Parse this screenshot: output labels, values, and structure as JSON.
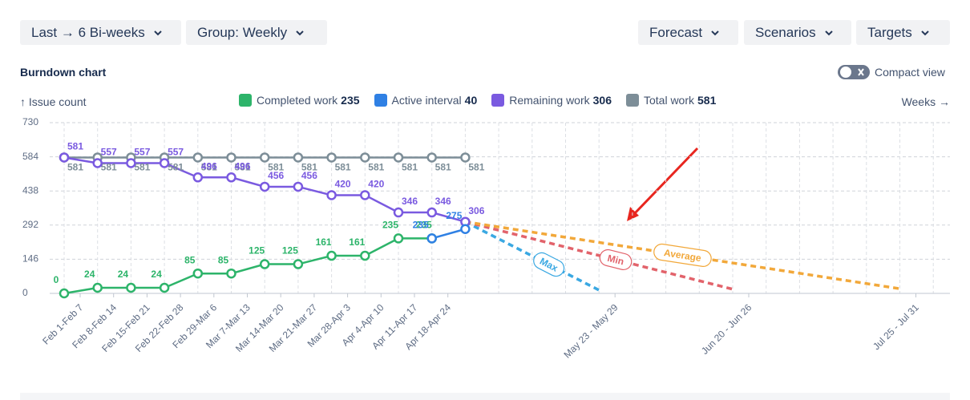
{
  "toolbar": {
    "left": [
      "Last → 6 Bi-weeks",
      "Group: Weekly"
    ],
    "right": [
      "Forecast",
      "Scenarios",
      "Targets"
    ]
  },
  "panel": {
    "title": "Burndown chart",
    "toggle": "Compact view"
  },
  "chart_data": {
    "type": "line",
    "y_label": "↑ Issue count",
    "x_label": "Weeks →",
    "categories": [
      "Feb 1-Feb 7",
      "Feb 8-Feb 14",
      "Feb 15-Feb 21",
      "Feb 22-Feb 28",
      "Feb 29-Mar 6",
      "Mar 7-Mar 13",
      "Mar 14-Mar 20",
      "Mar 21-Mar 27",
      "Mar 28-Apr 3",
      "Apr 4-Apr 10",
      "Apr 11-Apr 17",
      "Apr 18-Apr 24",
      null,
      null,
      null,
      null,
      "May 23 - May 29",
      null,
      null,
      null,
      "Jun 20 - Jun 26",
      null,
      null,
      null,
      null,
      "Jul 25 - Jul 31",
      null
    ],
    "ylim": [
      0,
      730
    ],
    "yticks": [
      0,
      146,
      292,
      438,
      584,
      730
    ],
    "grid": true,
    "data_labels": true,
    "series": [
      {
        "name": "Completed work",
        "total": 235,
        "color": "#2db46a",
        "values": [
          0,
          24,
          24,
          24,
          85,
          85,
          125,
          125,
          161,
          161,
          235,
          235,
          null,
          null,
          null,
          null,
          null,
          null,
          null,
          null,
          null,
          null,
          null,
          null,
          null,
          null,
          null
        ]
      },
      {
        "name": "Active interval",
        "total": 40,
        "color": "#2f80e4",
        "values": [
          null,
          null,
          null,
          null,
          null,
          null,
          null,
          null,
          null,
          null,
          null,
          235,
          275,
          null,
          null,
          null,
          null,
          null,
          null,
          null,
          null,
          null,
          null,
          null,
          null,
          null,
          null
        ]
      },
      {
        "name": "Remaining work",
        "total": 306,
        "color": "#7a5ae0",
        "values": [
          581,
          557,
          557,
          557,
          496,
          496,
          456,
          456,
          420,
          420,
          346,
          346,
          306,
          null,
          null,
          null,
          null,
          null,
          null,
          null,
          null,
          null,
          null,
          null,
          null,
          null,
          null
        ]
      },
      {
        "name": "Total work",
        "total": 581,
        "color": "#7d8e98",
        "values": [
          581,
          581,
          581,
          581,
          581,
          581,
          581,
          581,
          581,
          581,
          581,
          581,
          581,
          null,
          null,
          null,
          null,
          null,
          null,
          null,
          null,
          null,
          null,
          null,
          null,
          null,
          null
        ]
      }
    ],
    "forecasts": [
      {
        "name": "Max",
        "color": "#3aa8e2",
        "values": [
          null,
          null,
          null,
          null,
          null,
          null,
          null,
          null,
          null,
          null,
          null,
          null,
          306,
          233,
          160,
          87,
          14,
          null,
          null,
          null,
          null,
          null,
          null,
          null,
          null,
          null,
          null
        ]
      },
      {
        "name": "Min",
        "color": "#e2636b",
        "values": [
          null,
          null,
          null,
          null,
          null,
          null,
          null,
          null,
          null,
          null,
          null,
          null,
          306,
          270,
          234,
          198,
          162,
          126,
          90,
          54,
          18,
          null,
          null,
          null,
          null,
          null,
          null
        ]
      },
      {
        "name": "Average",
        "color": "#f2a83a",
        "values": [
          null,
          null,
          null,
          null,
          null,
          null,
          null,
          null,
          null,
          null,
          null,
          null,
          306,
          284,
          262,
          240,
          218,
          196,
          174,
          152,
          130,
          108,
          86,
          64,
          42,
          20,
          null
        ]
      }
    ]
  }
}
